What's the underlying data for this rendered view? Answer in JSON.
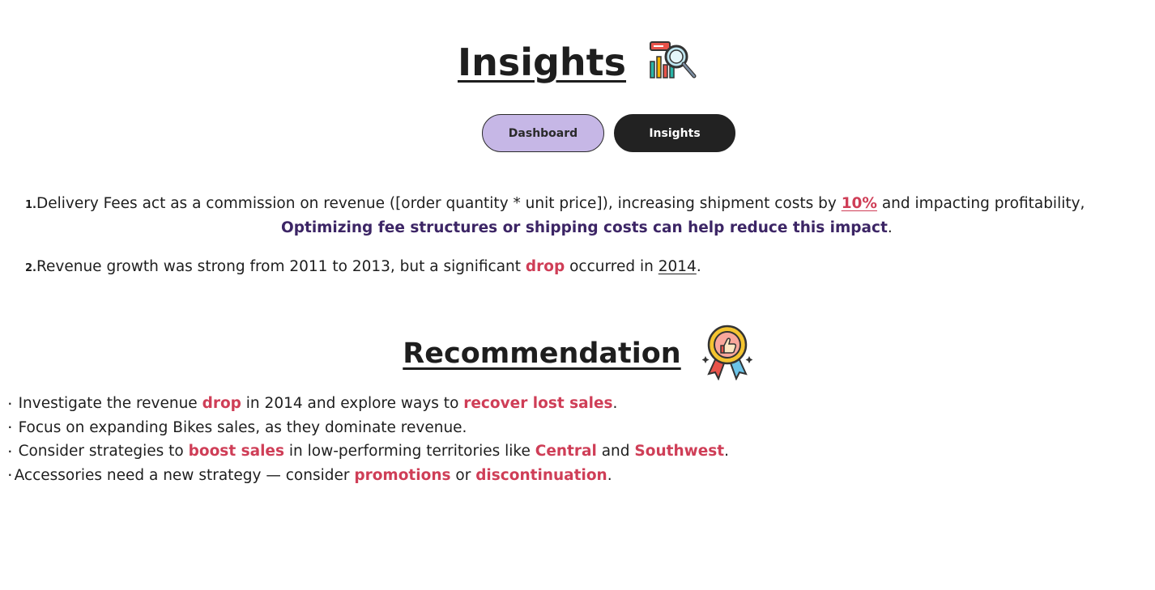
{
  "insights_section": {
    "title": "Insights",
    "icon": "chart-magnifier-icon"
  },
  "nav": {
    "dashboard_label": "Dashboard",
    "insights_label": "Insights",
    "dashboard_color": "#c6b7e6",
    "insights_color": "#222222"
  },
  "insights": [
    {
      "number": "1.",
      "line1": [
        {
          "t": "Delivery",
          "s": "b"
        },
        {
          "t": " Fees act as a ",
          "s": ""
        },
        {
          "t": "commission",
          "s": "b"
        },
        {
          "t": " on revenue ([order quantity * unit price]), increasing shipment costs by ",
          "s": ""
        },
        {
          "t": "10%",
          "s": "red u"
        },
        {
          "t": " and impacting profitability,",
          "s": ""
        }
      ],
      "line2": [
        {
          "t": "Optimizing fee structures or shipping costs can help reduce this impact",
          "s": "purple"
        },
        {
          "t": ".",
          "s": ""
        }
      ]
    },
    {
      "number": "2.",
      "line1": [
        {
          "t": "Revenue",
          "s": "b"
        },
        {
          "t": " growth was strong from ",
          "s": ""
        },
        {
          "t": "2011",
          "s": "b"
        },
        {
          "t": "  to ",
          "s": ""
        },
        {
          "t": "2013",
          "s": "b"
        },
        {
          "t": ", but a significant ",
          "s": ""
        },
        {
          "t": "drop",
          "s": "red"
        },
        {
          "t": " occurred in ",
          "s": ""
        },
        {
          "t": "2014",
          "s": "b u"
        },
        {
          "t": ".",
          "s": ""
        }
      ]
    }
  ],
  "recommendation_section": {
    "title": "Recommendation",
    "icon": "thumbs-up-badge-icon"
  },
  "recommendations": [
    [
      {
        "t": "Investigate",
        "s": "b"
      },
      {
        "t": " the revenue ",
        "s": ""
      },
      {
        "t": "drop",
        "s": "red"
      },
      {
        "t": "  in  ",
        "s": ""
      },
      {
        "t": "2014",
        "s": "b"
      },
      {
        "t": " and explore ways to ",
        "s": ""
      },
      {
        "t": "recover lost sales",
        "s": "red"
      },
      {
        "t": ".",
        "s": ""
      }
    ],
    [
      {
        "t": "Focus",
        "s": "b"
      },
      {
        "t": " on expanding ",
        "s": ""
      },
      {
        "t": "Bikes sales",
        "s": "b"
      },
      {
        "t": ", as they ",
        "s": ""
      },
      {
        "t": "dominate",
        "s": "b"
      },
      {
        "t": " revenue.",
        "s": ""
      }
    ],
    [
      {
        "t": "Consider strategies",
        "s": "b"
      },
      {
        "t": " to ",
        "s": ""
      },
      {
        "t": "boost sales",
        "s": "red"
      },
      {
        "t": " in ",
        "s": ""
      },
      {
        "t": "low-performing territories",
        "s": "b"
      },
      {
        "t": " like ",
        "s": ""
      },
      {
        "t": "Central",
        "s": "red"
      },
      {
        "t": " and ",
        "s": "b"
      },
      {
        "t": "Southwest",
        "s": "red"
      },
      {
        "t": ".",
        "s": ""
      }
    ],
    [
      {
        "t": "Accessories",
        "s": "b"
      },
      {
        "t": " need a ",
        "s": ""
      },
      {
        "t": "new strategy",
        "s": "b"
      },
      {
        "t": " — consider ",
        "s": ""
      },
      {
        "t": "promotions",
        "s": "red"
      },
      {
        "t": " or ",
        "s": ""
      },
      {
        "t": "discontinuation",
        "s": "red"
      },
      {
        "t": ".",
        "s": ""
      }
    ]
  ],
  "colors": {
    "accent_red": "#cf3e57",
    "accent_purple": "#3c2565",
    "text": "#1e1e1e"
  }
}
